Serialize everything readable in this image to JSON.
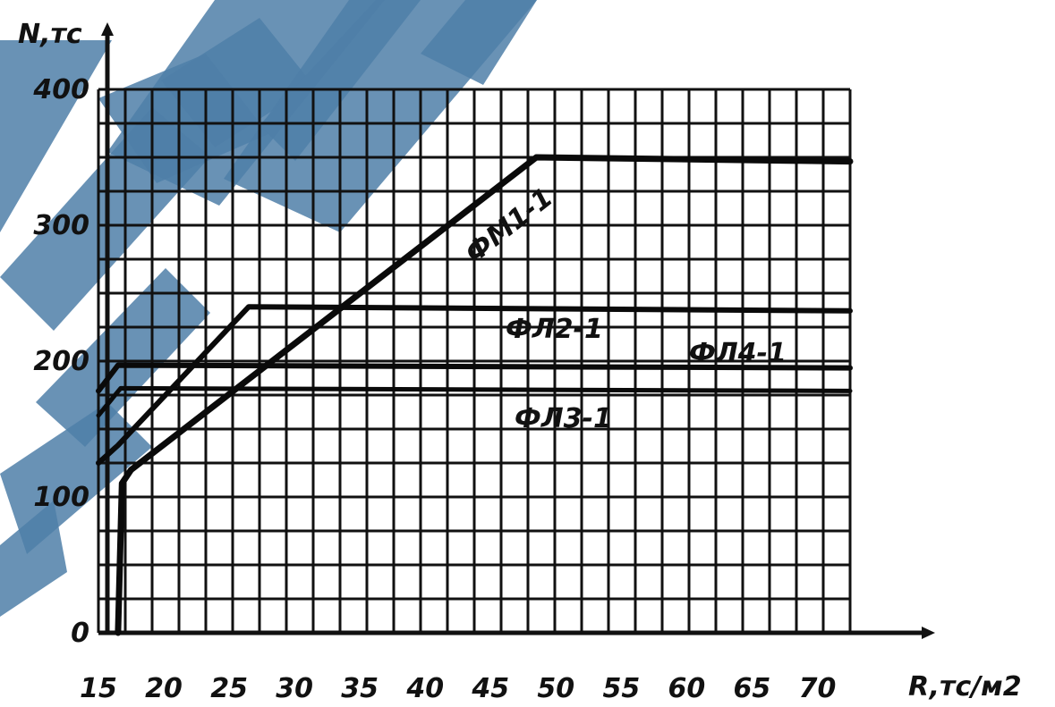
{
  "chart_data": {
    "type": "line",
    "title": "",
    "xlabel": "R,тс/м2",
    "ylabel": "N,тс",
    "xlim": [
      15,
      72.5
    ],
    "ylim": [
      0,
      400
    ],
    "x_ticks": [
      "15",
      "20",
      "25",
      "30",
      "35",
      "40",
      "45",
      "50",
      "55",
      "60",
      "65",
      "70"
    ],
    "y_ticks": [
      "0",
      "100",
      "200",
      "300",
      "400"
    ],
    "grid": true,
    "series": [
      {
        "name": "ФМ1-1",
        "label_text": "ФМ1-1",
        "points": [
          [
            16.5,
            0
          ],
          [
            16.8,
            110
          ],
          [
            17.5,
            120
          ],
          [
            48.5,
            350
          ],
          [
            72.5,
            347
          ]
        ]
      },
      {
        "name": "ФЛ2-1",
        "label_text": "ФЛ2-1",
        "points": [
          [
            15,
            125
          ],
          [
            16.5,
            138
          ],
          [
            26.5,
            240
          ],
          [
            72.5,
            237
          ]
        ]
      },
      {
        "name": "ФЛ4-1",
        "label_text": "ФЛ4-1",
        "points": [
          [
            15,
            178
          ],
          [
            16.5,
            197
          ],
          [
            72.5,
            195
          ]
        ]
      },
      {
        "name": "ФЛ3-1",
        "label_text": "ФЛ3-1",
        "points": [
          [
            15,
            160
          ],
          [
            16.7,
            180
          ],
          [
            72.5,
            178
          ]
        ]
      }
    ]
  },
  "colors": {
    "line": "#0a0a0a",
    "grid": "#111111",
    "watermark": "#4f7fa8"
  }
}
